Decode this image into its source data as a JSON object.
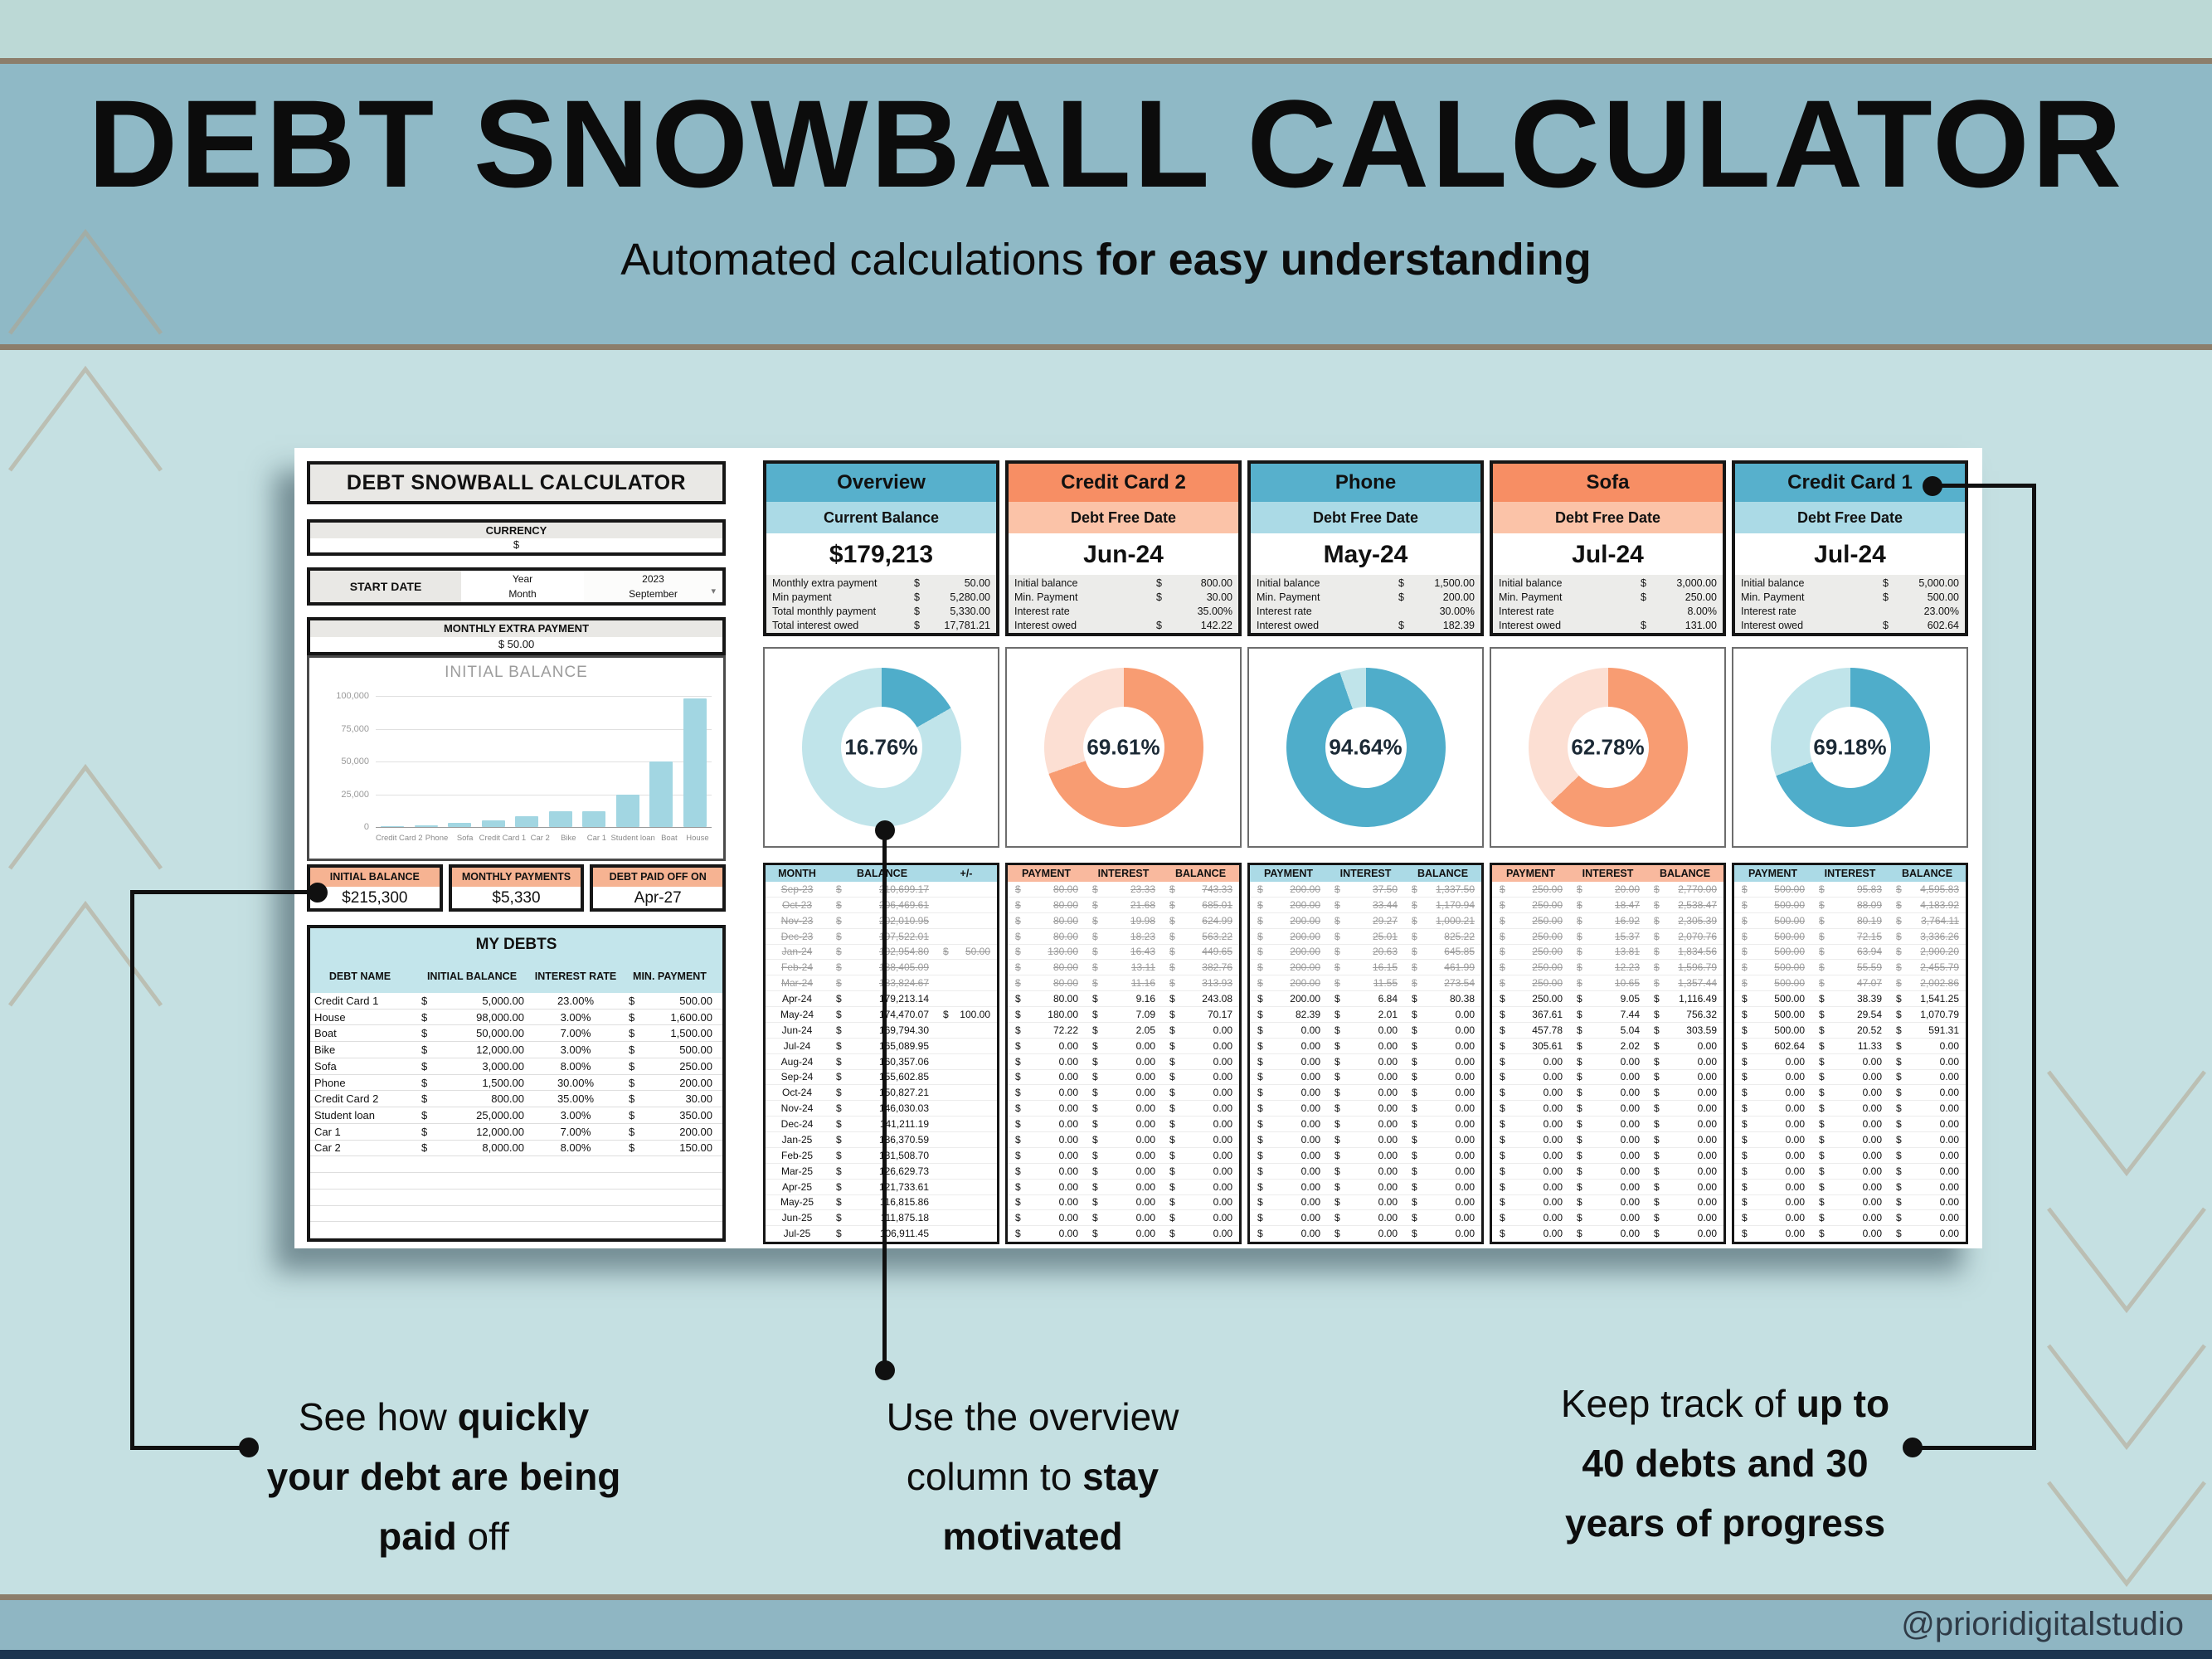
{
  "header": {
    "title": "DEBT SNOWBALL CALCULATOR",
    "subtitle_regular": "Automated calculations ",
    "subtitle_bold": "for easy understanding"
  },
  "footer": {
    "handle": "@prioridigitalstudio"
  },
  "colors": {
    "band_header": "#8fb9c6",
    "band_top": "#bcd9d6",
    "main_bg": "#c5e0e2",
    "tan_line": "#8c7e6b",
    "navy_strip": "#1c3550",
    "blue_title": "#57b0cc",
    "blue_light": "#abdae6",
    "orange_title": "#f78e64",
    "orange_light": "#f9b99e",
    "donut_blue": "#4fadca",
    "donut_blue_light": "#c0e4ea",
    "donut_orange": "#f89c72",
    "donut_orange_light": "#fcdfd3",
    "peach_header": "#f6b392",
    "teal_fill": "#c3e5eb",
    "bar_fill": "#a2d6e2"
  },
  "annotations": [
    {
      "lines": [
        [
          [
            "See how ",
            0
          ],
          [
            "quickly",
            1
          ]
        ],
        [
          [
            "your debt are being",
            1
          ]
        ],
        [
          [
            "paid",
            1
          ],
          [
            " off",
            0
          ]
        ]
      ]
    },
    {
      "lines": [
        [
          [
            "Use the overview",
            0
          ]
        ],
        [
          [
            "column to ",
            0
          ],
          [
            "stay",
            1
          ]
        ],
        [
          [
            "motivated",
            1
          ]
        ]
      ]
    },
    {
      "lines": [
        [
          [
            "Keep track of ",
            0
          ],
          [
            "up to",
            1
          ]
        ],
        [
          [
            "40 debts and 30",
            1
          ]
        ],
        [
          [
            "years of progress",
            1
          ]
        ]
      ]
    }
  ],
  "calculator": {
    "title": "DEBT SNOWBALL CALCULATOR",
    "currency": {
      "label": "CURRENCY",
      "value": "$"
    },
    "start_date": {
      "label": "START DATE",
      "year_label": "Year",
      "month_label": "Month",
      "year": "2023",
      "month": "September"
    },
    "extra_payment": {
      "label": "MONTHLY EXTRA PAYMENT",
      "value": "$  50.00"
    },
    "bar_chart": {
      "title": "INITIAL BALANCE",
      "categories": [
        "Credit Card 2",
        "Phone",
        "Sofa",
        "Credit Card 1",
        "Car 2",
        "Bike",
        "Car 1",
        "Student loan",
        "Boat",
        "House"
      ],
      "values": [
        800,
        1500,
        3000,
        5000,
        8000,
        12000,
        12000,
        25000,
        50000,
        98000
      ],
      "y_ticks": [
        "100,000",
        "75,000",
        "50,000",
        "25,000",
        "0"
      ],
      "ymax": 100000
    },
    "summary": [
      {
        "label": "INITIAL BALANCE",
        "value": "$215,300"
      },
      {
        "label": "MONTHLY PAYMENTS",
        "value": "$5,330"
      },
      {
        "label": "DEBT PAID OFF ON",
        "value": "Apr-27"
      }
    ],
    "my_debts": {
      "title": "MY DEBTS",
      "headers": [
        "DEBT NAME",
        "INITIAL BALANCE",
        "INTEREST RATE",
        "MIN. PAYMENT"
      ],
      "rows": [
        [
          "Credit Card 1",
          "5,000.00",
          "23.00%",
          "500.00"
        ],
        [
          "House",
          "98,000.00",
          "3.00%",
          "1,600.00"
        ],
        [
          "Boat",
          "50,000.00",
          "7.00%",
          "1,500.00"
        ],
        [
          "Bike",
          "12,000.00",
          "3.00%",
          "500.00"
        ],
        [
          "Sofa",
          "3,000.00",
          "8.00%",
          "250.00"
        ],
        [
          "Phone",
          "1,500.00",
          "30.00%",
          "200.00"
        ],
        [
          "Credit Card 2",
          "800.00",
          "35.00%",
          "30.00"
        ],
        [
          "Student loan",
          "25,000.00",
          "3.00%",
          "350.00"
        ],
        [
          "Car 1",
          "12,000.00",
          "7.00%",
          "200.00"
        ],
        [
          "Car 2",
          "8,000.00",
          "8.00%",
          "150.00"
        ]
      ],
      "empty_rows": 5
    }
  },
  "columns": [
    {
      "title": "Overview",
      "theme": "blue",
      "sub": "Current Balance",
      "big": "$179,213",
      "stats": [
        [
          "Monthly extra payment",
          "$",
          "50.00"
        ],
        [
          "Min payment",
          "$",
          "5,280.00"
        ],
        [
          "Total monthly payment",
          "$",
          "5,330.00"
        ],
        [
          "Total interest owed",
          "$",
          "17,781.21"
        ]
      ],
      "donut": {
        "pct": 16.76,
        "label": "16.76%"
      },
      "table": {
        "type": "overview",
        "headers": [
          "MONTH",
          "BALANCE",
          "+/-"
        ]
      },
      "rows": [
        [
          "Sep-23",
          "210,699.17",
          "",
          1
        ],
        [
          "Oct-23",
          "206,469.61",
          "",
          1
        ],
        [
          "Nov-23",
          "202,010.95",
          "",
          1
        ],
        [
          "Dec-23",
          "197,522.01",
          "",
          1
        ],
        [
          "Jan-24",
          "192,954.80",
          "50.00",
          1
        ],
        [
          "Feb-24",
          "188,405.09",
          "",
          1
        ],
        [
          "Mar-24",
          "183,824.67",
          "",
          1
        ],
        [
          "Apr-24",
          "179,213.14",
          "",
          0
        ],
        [
          "May-24",
          "174,470.07",
          "100.00",
          0
        ],
        [
          "Jun-24",
          "169,794.30",
          "",
          0
        ],
        [
          "Jul-24",
          "165,089.95",
          "",
          0
        ],
        [
          "Aug-24",
          "160,357.06",
          "",
          0
        ],
        [
          "Sep-24",
          "155,602.85",
          "",
          0
        ],
        [
          "Oct-24",
          "150,827.21",
          "",
          0
        ],
        [
          "Nov-24",
          "146,030.03",
          "",
          0
        ],
        [
          "Dec-24",
          "141,211.19",
          "",
          0
        ],
        [
          "Jan-25",
          "136,370.59",
          "",
          0
        ],
        [
          "Feb-25",
          "131,508.70",
          "",
          0
        ],
        [
          "Mar-25",
          "126,629.73",
          "",
          0
        ],
        [
          "Apr-25",
          "121,733.61",
          "",
          0
        ],
        [
          "May-25",
          "116,815.86",
          "",
          0
        ],
        [
          "Jun-25",
          "111,875.18",
          "",
          0
        ],
        [
          "Jul-25",
          "106,911.45",
          "",
          0
        ]
      ]
    },
    {
      "title": "Credit Card 2",
      "theme": "orange",
      "sub": "Debt Free Date",
      "big": "Jun-24",
      "stats": [
        [
          "Initial balance",
          "$",
          "800.00"
        ],
        [
          "Min. Payment",
          "$",
          "30.00"
        ],
        [
          "Interest rate",
          "",
          "35.00%"
        ],
        [
          "Interest owed",
          "$",
          "142.22"
        ]
      ],
      "donut": {
        "pct": 69.61,
        "label": "69.61%"
      },
      "table": {
        "type": "payments",
        "headers": [
          "PAYMENT",
          "INTEREST",
          "BALANCE"
        ]
      },
      "rows": [
        [
          "80.00",
          "23.33",
          "743.33",
          1
        ],
        [
          "80.00",
          "21.68",
          "685.01",
          1
        ],
        [
          "80.00",
          "19.98",
          "624.99",
          1
        ],
        [
          "80.00",
          "18.23",
          "563.22",
          1
        ],
        [
          "130.00",
          "16.43",
          "449.65",
          1
        ],
        [
          "80.00",
          "13.11",
          "382.76",
          1
        ],
        [
          "80.00",
          "11.16",
          "313.93",
          1
        ],
        [
          "80.00",
          "9.16",
          "243.08",
          0
        ],
        [
          "180.00",
          "7.09",
          "70.17",
          0
        ],
        [
          "72.22",
          "2.05",
          "0.00",
          0
        ],
        [
          "0.00",
          "0.00",
          "0.00",
          0
        ],
        [
          "0.00",
          "0.00",
          "0.00",
          0
        ],
        [
          "0.00",
          "0.00",
          "0.00",
          0
        ],
        [
          "0.00",
          "0.00",
          "0.00",
          0
        ],
        [
          "0.00",
          "0.00",
          "0.00",
          0
        ],
        [
          "0.00",
          "0.00",
          "0.00",
          0
        ],
        [
          "0.00",
          "0.00",
          "0.00",
          0
        ],
        [
          "0.00",
          "0.00",
          "0.00",
          0
        ],
        [
          "0.00",
          "0.00",
          "0.00",
          0
        ],
        [
          "0.00",
          "0.00",
          "0.00",
          0
        ],
        [
          "0.00",
          "0.00",
          "0.00",
          0
        ],
        [
          "0.00",
          "0.00",
          "0.00",
          0
        ],
        [
          "0.00",
          "0.00",
          "0.00",
          0
        ]
      ]
    },
    {
      "title": "Phone",
      "theme": "blue",
      "sub": "Debt Free Date",
      "big": "May-24",
      "stats": [
        [
          "Initial balance",
          "$",
          "1,500.00"
        ],
        [
          "Min. Payment",
          "$",
          "200.00"
        ],
        [
          "Interest rate",
          "",
          "30.00%"
        ],
        [
          "Interest owed",
          "$",
          "182.39"
        ]
      ],
      "donut": {
        "pct": 94.64,
        "label": "94.64%"
      },
      "table": {
        "type": "payments",
        "headers": [
          "PAYMENT",
          "INTEREST",
          "BALANCE"
        ]
      },
      "rows": [
        [
          "200.00",
          "37.50",
          "1,337.50",
          1
        ],
        [
          "200.00",
          "33.44",
          "1,170.94",
          1
        ],
        [
          "200.00",
          "29.27",
          "1,000.21",
          1
        ],
        [
          "200.00",
          "25.01",
          "825.22",
          1
        ],
        [
          "200.00",
          "20.63",
          "645.85",
          1
        ],
        [
          "200.00",
          "16.15",
          "461.99",
          1
        ],
        [
          "200.00",
          "11.55",
          "273.54",
          1
        ],
        [
          "200.00",
          "6.84",
          "80.38",
          0
        ],
        [
          "82.39",
          "2.01",
          "0.00",
          0
        ],
        [
          "0.00",
          "0.00",
          "0.00",
          0
        ],
        [
          "0.00",
          "0.00",
          "0.00",
          0
        ],
        [
          "0.00",
          "0.00",
          "0.00",
          0
        ],
        [
          "0.00",
          "0.00",
          "0.00",
          0
        ],
        [
          "0.00",
          "0.00",
          "0.00",
          0
        ],
        [
          "0.00",
          "0.00",
          "0.00",
          0
        ],
        [
          "0.00",
          "0.00",
          "0.00",
          0
        ],
        [
          "0.00",
          "0.00",
          "0.00",
          0
        ],
        [
          "0.00",
          "0.00",
          "0.00",
          0
        ],
        [
          "0.00",
          "0.00",
          "0.00",
          0
        ],
        [
          "0.00",
          "0.00",
          "0.00",
          0
        ],
        [
          "0.00",
          "0.00",
          "0.00",
          0
        ],
        [
          "0.00",
          "0.00",
          "0.00",
          0
        ],
        [
          "0.00",
          "0.00",
          "0.00",
          0
        ]
      ]
    },
    {
      "title": "Sofa",
      "theme": "orange",
      "sub": "Debt Free Date",
      "big": "Jul-24",
      "stats": [
        [
          "Initial balance",
          "$",
          "3,000.00"
        ],
        [
          "Min. Payment",
          "$",
          "250.00"
        ],
        [
          "Interest rate",
          "",
          "8.00%"
        ],
        [
          "Interest owed",
          "$",
          "131.00"
        ]
      ],
      "donut": {
        "pct": 62.78,
        "label": "62.78%"
      },
      "table": {
        "type": "payments",
        "headers": [
          "PAYMENT",
          "INTEREST",
          "BALANCE"
        ]
      },
      "rows": [
        [
          "250.00",
          "20.00",
          "2,770.00",
          1
        ],
        [
          "250.00",
          "18.47",
          "2,538.47",
          1
        ],
        [
          "250.00",
          "16.92",
          "2,305.39",
          1
        ],
        [
          "250.00",
          "15.37",
          "2,070.76",
          1
        ],
        [
          "250.00",
          "13.81",
          "1,834.56",
          1
        ],
        [
          "250.00",
          "12.23",
          "1,596.79",
          1
        ],
        [
          "250.00",
          "10.65",
          "1,357.44",
          1
        ],
        [
          "250.00",
          "9.05",
          "1,116.49",
          0
        ],
        [
          "367.61",
          "7.44",
          "756.32",
          0
        ],
        [
          "457.78",
          "5.04",
          "303.59",
          0
        ],
        [
          "305.61",
          "2.02",
          "0.00",
          0
        ],
        [
          "0.00",
          "0.00",
          "0.00",
          0
        ],
        [
          "0.00",
          "0.00",
          "0.00",
          0
        ],
        [
          "0.00",
          "0.00",
          "0.00",
          0
        ],
        [
          "0.00",
          "0.00",
          "0.00",
          0
        ],
        [
          "0.00",
          "0.00",
          "0.00",
          0
        ],
        [
          "0.00",
          "0.00",
          "0.00",
          0
        ],
        [
          "0.00",
          "0.00",
          "0.00",
          0
        ],
        [
          "0.00",
          "0.00",
          "0.00",
          0
        ],
        [
          "0.00",
          "0.00",
          "0.00",
          0
        ],
        [
          "0.00",
          "0.00",
          "0.00",
          0
        ],
        [
          "0.00",
          "0.00",
          "0.00",
          0
        ],
        [
          "0.00",
          "0.00",
          "0.00",
          0
        ]
      ]
    },
    {
      "title": "Credit Card 1",
      "theme": "blue",
      "sub": "Debt Free Date",
      "big": "Jul-24",
      "stats": [
        [
          "Initial balance",
          "$",
          "5,000.00"
        ],
        [
          "Min. Payment",
          "$",
          "500.00"
        ],
        [
          "Interest rate",
          "",
          "23.00%"
        ],
        [
          "Interest owed",
          "$",
          "602.64"
        ]
      ],
      "donut": {
        "pct": 69.18,
        "label": "69.18%"
      },
      "table": {
        "type": "payments",
        "headers": [
          "PAYMENT",
          "INTEREST",
          "BALANCE"
        ]
      },
      "rows": [
        [
          "500.00",
          "95.83",
          "4,595.83",
          1
        ],
        [
          "500.00",
          "88.09",
          "4,183.92",
          1
        ],
        [
          "500.00",
          "80.19",
          "3,764.11",
          1
        ],
        [
          "500.00",
          "72.15",
          "3,336.26",
          1
        ],
        [
          "500.00",
          "63.94",
          "2,900.20",
          1
        ],
        [
          "500.00",
          "55.59",
          "2,455.79",
          1
        ],
        [
          "500.00",
          "47.07",
          "2,002.86",
          1
        ],
        [
          "500.00",
          "38.39",
          "1,541.25",
          0
        ],
        [
          "500.00",
          "29.54",
          "1,070.79",
          0
        ],
        [
          "500.00",
          "20.52",
          "591.31",
          0
        ],
        [
          "602.64",
          "11.33",
          "0.00",
          0
        ],
        [
          "0.00",
          "0.00",
          "0.00",
          0
        ],
        [
          "0.00",
          "0.00",
          "0.00",
          0
        ],
        [
          "0.00",
          "0.00",
          "0.00",
          0
        ],
        [
          "0.00",
          "0.00",
          "0.00",
          0
        ],
        [
          "0.00",
          "0.00",
          "0.00",
          0
        ],
        [
          "0.00",
          "0.00",
          "0.00",
          0
        ],
        [
          "0.00",
          "0.00",
          "0.00",
          0
        ],
        [
          "0.00",
          "0.00",
          "0.00",
          0
        ],
        [
          "0.00",
          "0.00",
          "0.00",
          0
        ],
        [
          "0.00",
          "0.00",
          "0.00",
          0
        ],
        [
          "0.00",
          "0.00",
          "0.00",
          0
        ],
        [
          "0.00",
          "0.00",
          "0.00",
          0
        ]
      ]
    }
  ],
  "chart_data": [
    {
      "type": "bar",
      "title": "INITIAL BALANCE",
      "categories": [
        "Credit Card 2",
        "Phone",
        "Sofa",
        "Credit Card 1",
        "Car 2",
        "Bike",
        "Car 1",
        "Student loan",
        "Boat",
        "House"
      ],
      "values": [
        800,
        1500,
        3000,
        5000,
        8000,
        12000,
        12000,
        25000,
        50000,
        98000
      ],
      "xlabel": "",
      "ylabel": "",
      "ylim": [
        0,
        100000
      ],
      "grid": true,
      "legend": false
    },
    {
      "type": "pie",
      "title": "Debt payoff progress donuts",
      "series": [
        {
          "name": "Overview",
          "value_pct": 16.76
        },
        {
          "name": "Credit Card 2",
          "value_pct": 69.61
        },
        {
          "name": "Phone",
          "value_pct": 94.64
        },
        {
          "name": "Sofa",
          "value_pct": 62.78
        },
        {
          "name": "Credit Card 1",
          "value_pct": 69.18
        }
      ]
    }
  ]
}
